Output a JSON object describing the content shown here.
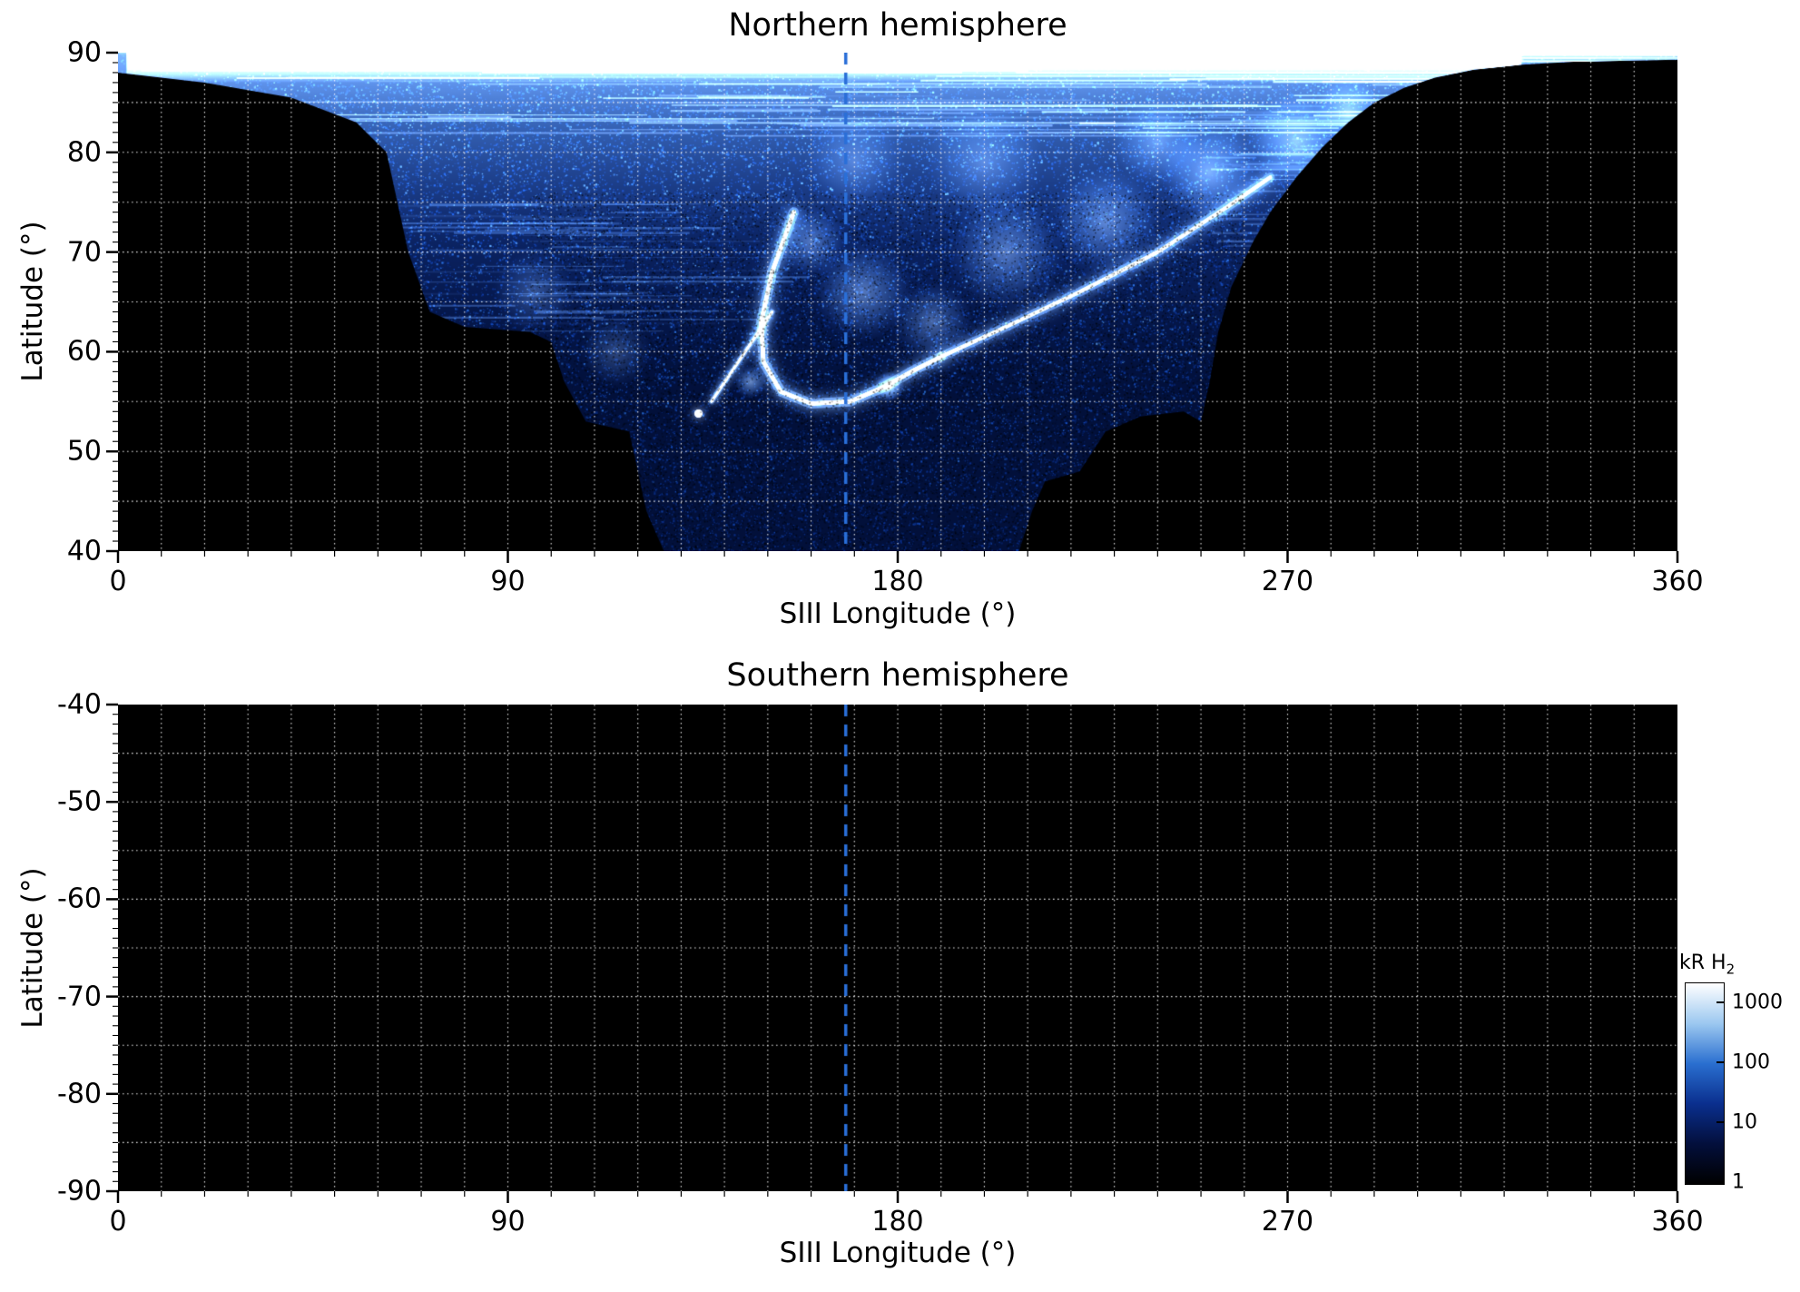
{
  "figure": {
    "description": "Two-panel polar auroral emission map (log color scale, kR H2) versus SIII longitude and latitude"
  },
  "panels": [
    {
      "id": "north",
      "title": "Northern hemisphere",
      "xlabel": "SIII Longitude (°)",
      "ylabel": "Latitude (°)",
      "xlim": [
        0,
        360
      ],
      "ylim": [
        40,
        90
      ],
      "xticks": [
        0,
        90,
        180,
        270,
        360
      ],
      "yticks": [
        90,
        80,
        70,
        60,
        50,
        40
      ],
      "x_minor_step": 10,
      "y_minor_step": 1,
      "grid_lon_step": 10,
      "grid_lat_step": 5,
      "marker_longitude": 168
    },
    {
      "id": "south",
      "title": "Southern hemisphere",
      "xlabel": "SIII Longitude (°)",
      "ylabel": "Latitude (°)",
      "xlim": [
        0,
        360
      ],
      "ylim": [
        -90,
        -40
      ],
      "xticks": [
        0,
        90,
        180,
        270,
        360
      ],
      "yticks": [
        -40,
        -50,
        -60,
        -70,
        -80,
        -90
      ],
      "x_minor_step": 10,
      "y_minor_step": 1,
      "grid_lon_step": 10,
      "grid_lat_step": 5,
      "marker_longitude": 168
    }
  ],
  "colorbar": {
    "title_main": "kR H",
    "title_sub": "2",
    "tick_labels": [
      "1000",
      "100",
      "10",
      "1"
    ],
    "scale": "log",
    "gradient": [
      "#000000",
      "#030f3c",
      "#0a2f8e",
      "#2a6fd0",
      "#9cc8f0",
      "#ffffff"
    ]
  },
  "colors": {
    "grid": "rgba(255,255,255,0.9)",
    "marker_line": "#2a6fd8",
    "plot_background": "#000000",
    "axis": "#000000",
    "emission_base": "#02103a",
    "speckle": [
      "#0a2f8a",
      "#144bbd",
      "#2a6fd8",
      "#5b9fe6"
    ]
  },
  "chart_data": [
    {
      "type": "heatmap",
      "title": "Northern hemisphere",
      "xlabel": "SIII Longitude (°)",
      "ylabel": "Latitude (°)",
      "xlim": [
        0,
        360
      ],
      "ylim": [
        40,
        90
      ],
      "grid": "dotted white, 10 deg longitude x 5 deg latitude",
      "colorbar_label": "kR H2",
      "color_scale": "log",
      "color_range_kR": [
        1,
        1000
      ],
      "annotations": [
        {
          "type": "dashed-vertical-line",
          "longitude": 168
        }
      ],
      "coverage_boundary_lon_lat": [
        [
          0,
          88
        ],
        [
          20,
          87
        ],
        [
          40,
          85.5
        ],
        [
          55,
          83
        ],
        [
          62,
          80
        ],
        [
          67,
          70
        ],
        [
          72,
          64
        ],
        [
          80,
          62.5
        ],
        [
          95,
          62
        ],
        [
          100,
          61
        ],
        [
          103,
          57
        ],
        [
          108,
          53
        ],
        [
          118,
          52
        ],
        [
          122,
          44
        ],
        [
          126,
          40
        ],
        [
          208,
          40
        ],
        [
          211,
          44
        ],
        [
          214,
          47
        ],
        [
          222,
          48
        ],
        [
          228,
          52
        ],
        [
          236,
          53.5
        ],
        [
          246,
          54
        ],
        [
          250,
          53
        ],
        [
          252,
          57
        ],
        [
          254,
          62
        ],
        [
          257,
          66.5
        ],
        [
          262,
          71
        ],
        [
          266,
          74
        ],
        [
          272,
          77.5
        ],
        [
          278,
          80.5
        ],
        [
          284,
          83
        ],
        [
          290,
          85
        ],
        [
          297,
          86.5
        ],
        [
          304,
          87.5
        ],
        [
          313,
          88.3
        ],
        [
          324,
          88.8
        ],
        [
          336,
          89.1
        ],
        [
          360,
          89.3
        ]
      ],
      "features": {
        "polar_cap_band": {
          "lat_range": [
            88,
            90
          ],
          "lon_range": [
            0,
            330
          ],
          "intensity_kR": 1000
        },
        "main_emission_arc_lon_lat": [
          [
            156,
            74
          ],
          [
            151,
            68
          ],
          [
            148.5,
            63
          ],
          [
            149,
            59
          ],
          [
            153,
            56
          ],
          [
            160,
            54.8
          ],
          [
            169,
            55
          ],
          [
            177,
            56.5
          ],
          [
            184,
            58.2
          ],
          [
            190,
            59.5
          ]
        ],
        "diagonal_arc_lon_lat": [
          [
            190,
            59.5
          ],
          [
            205,
            62.5
          ],
          [
            222,
            66
          ],
          [
            240,
            70
          ],
          [
            256,
            74.5
          ],
          [
            266,
            77.5
          ]
        ],
        "secondary_streak_lon_lat": [
          [
            151,
            64
          ],
          [
            144,
            59.5
          ],
          [
            137,
            55
          ]
        ],
        "streak_end_spot_lon_lat": [
          134,
          53.8
        ],
        "bright_patches": [
          {
            "lon": 160,
            "lat": 71,
            "r_deg": 3.6,
            "a": 0.38
          },
          {
            "lon": 172,
            "lat": 66,
            "r_deg": 5.0,
            "a": 0.42
          },
          {
            "lon": 188,
            "lat": 63,
            "r_deg": 4.1,
            "a": 0.36
          },
          {
            "lon": 205,
            "lat": 70,
            "r_deg": 5.9,
            "a": 0.4
          },
          {
            "lon": 228,
            "lat": 73,
            "r_deg": 5.5,
            "a": 0.42
          },
          {
            "lon": 252,
            "lat": 78,
            "r_deg": 5.0,
            "a": 0.5
          },
          {
            "lon": 272,
            "lat": 81,
            "r_deg": 5.0,
            "a": 0.55
          },
          {
            "lon": 284,
            "lat": 84,
            "r_deg": 3.4,
            "a": 0.5
          },
          {
            "lon": 178,
            "lat": 56.5,
            "r_deg": 1.5,
            "a": 0.9
          },
          {
            "lon": 146,
            "lat": 57,
            "r_deg": 1.7,
            "a": 0.55
          },
          {
            "lon": 96,
            "lat": 66,
            "r_deg": 4.1,
            "a": 0.26
          },
          {
            "lon": 115,
            "lat": 60,
            "r_deg": 3.6,
            "a": 0.24
          },
          {
            "lon": 200,
            "lat": 79,
            "r_deg": 6.0,
            "a": 0.3
          },
          {
            "lon": 170,
            "lat": 79,
            "r_deg": 5.0,
            "a": 0.28
          },
          {
            "lon": 240,
            "lat": 81,
            "r_deg": 4.5,
            "a": 0.35
          }
        ]
      }
    },
    {
      "type": "heatmap",
      "title": "Southern hemisphere",
      "xlabel": "SIII Longitude (°)",
      "ylabel": "Latitude (°)",
      "xlim": [
        0,
        360
      ],
      "ylim": [
        -90,
        -40
      ],
      "grid": "dotted white, 10 deg longitude x 5 deg latitude",
      "colorbar_label": "kR H2",
      "color_scale": "log",
      "color_range_kR": [
        1,
        1000
      ],
      "content": "no emission above threshold (entire panel at background level / black)",
      "annotations": [
        {
          "type": "dashed-vertical-line",
          "longitude": 168
        }
      ]
    }
  ]
}
